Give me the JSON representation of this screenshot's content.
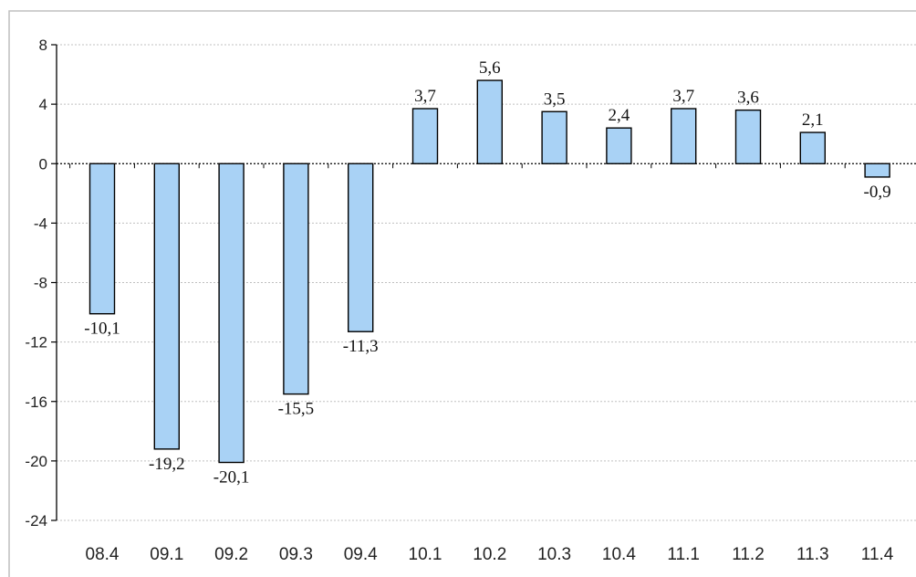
{
  "chart_data": {
    "type": "bar",
    "title": "",
    "xlabel": "",
    "ylabel": "",
    "categories": [
      "08.4",
      "09.1",
      "09.2",
      "09.3",
      "09.4",
      "10.1",
      "10.2",
      "10.3",
      "10.4",
      "11.1",
      "11.2",
      "11.3",
      "11.4"
    ],
    "values": [
      -10.1,
      -19.2,
      -20.1,
      -15.5,
      -11.3,
      3.7,
      5.6,
      3.5,
      2.4,
      3.7,
      3.6,
      2.1,
      -0.9
    ],
    "data_labels": [
      "-10,1",
      "-19,2",
      "-20,1",
      "-15,5",
      "-11,3",
      "3,7",
      "5,6",
      "3,5",
      "2,4",
      "3,7",
      "3,6",
      "2,1",
      "-0,9"
    ],
    "ylim": [
      -24,
      8
    ],
    "y_ticks": [
      8,
      4,
      0,
      -4,
      -8,
      -12,
      -16,
      -20,
      -24
    ],
    "y_tick_labels": [
      "8",
      "4",
      "0",
      "-4",
      "-8",
      "-12",
      "-16",
      "-20",
      "-24"
    ],
    "grid": true,
    "legend": "none",
    "colors": {
      "bar_fill": "#a9d2f5",
      "bar_stroke": "#000000",
      "grid": "#c0c0c0",
      "frame": "#bfbfbf"
    }
  }
}
